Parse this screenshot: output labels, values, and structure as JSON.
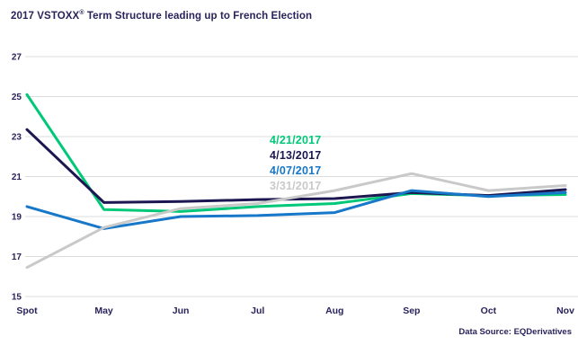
{
  "header": {
    "title_prefix": "2017 VSTOXX",
    "title_reg": "®",
    "title_suffix": " Term Structure leading up to French Election"
  },
  "footer": {
    "source": "Data Source: EQDerivatives"
  },
  "colors": {
    "text": "#29235C",
    "grid": "#DCDCDC",
    "background": "#FFFFFF",
    "series_green": "#00C878",
    "series_navy": "#1C1751",
    "series_blue": "#1777C8",
    "series_gray": "#C9C9C9"
  },
  "chart_data": {
    "type": "line",
    "title": "2017 VSTOXX® Term Structure leading up to French Election",
    "categories": [
      "Spot",
      "May",
      "Jun",
      "Jul",
      "Aug",
      "Sep",
      "Oct",
      "Nov"
    ],
    "series": [
      {
        "name": "4/21/2017",
        "color": "#00C878",
        "values": [
          25.1,
          19.35,
          19.25,
          19.5,
          19.65,
          20.15,
          20.05,
          20.1
        ]
      },
      {
        "name": "4/13/2017",
        "color": "#1C1751",
        "values": [
          23.35,
          19.7,
          19.75,
          19.85,
          19.9,
          20.2,
          20.05,
          20.35
        ]
      },
      {
        "name": "4/07/2017",
        "color": "#1777C8",
        "values": [
          19.5,
          18.4,
          19.0,
          19.05,
          19.2,
          20.3,
          20.0,
          20.2
        ]
      },
      {
        "name": "3/31/2017",
        "color": "#C9C9C9",
        "values": [
          16.45,
          18.45,
          19.4,
          19.65,
          20.3,
          21.15,
          20.3,
          20.55
        ]
      }
    ],
    "ylim": [
      15,
      27
    ],
    "yticks": [
      15,
      17,
      19,
      21,
      23,
      25,
      27
    ],
    "xlabel": "",
    "ylabel": "",
    "grid": "horizontal",
    "legend_position": "inside-upper-middle",
    "source": "Data Source: EQDerivatives"
  }
}
